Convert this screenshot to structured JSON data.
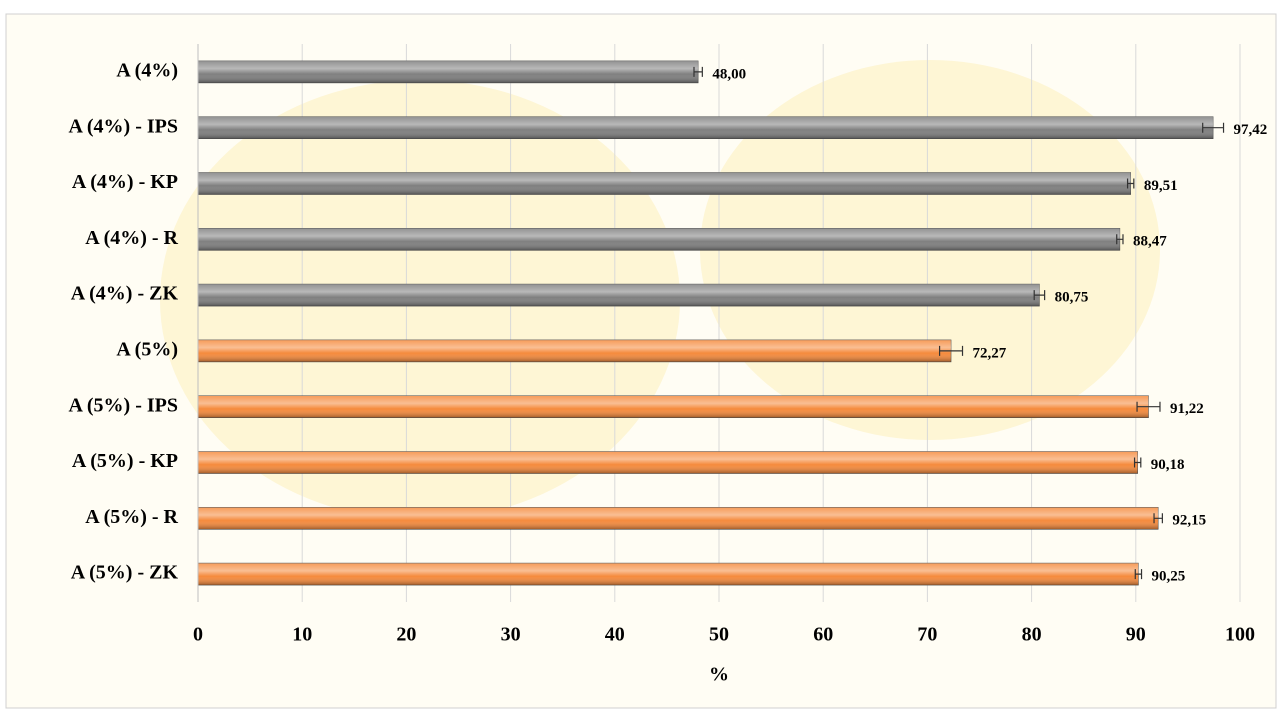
{
  "chart_data": {
    "type": "bar",
    "orientation": "horizontal",
    "xlabel": "%",
    "categories": [
      "A (4%)",
      "A (4%) - IPS",
      "A (4%) - KP",
      "A (4%) - R",
      "A (4%) - ZK",
      "A (5%)",
      "A (5%) - IPS",
      "A (5%) - KP",
      "A (5%) - R",
      "A (5%) - ZK"
    ],
    "values": [
      48.0,
      97.42,
      89.51,
      88.47,
      80.75,
      72.27,
      91.22,
      90.18,
      92.15,
      90.25
    ],
    "value_labels": [
      "48,00",
      "97,42",
      "89,51",
      "88,47",
      "80,75",
      "72,27",
      "91,22",
      "90,18",
      "92,15",
      "90,25"
    ],
    "errors": [
      0.4,
      1.0,
      0.3,
      0.3,
      0.5,
      1.1,
      1.1,
      0.3,
      0.4,
      0.3
    ],
    "colors": [
      "#7f7f7f",
      "#7f7f7f",
      "#7f7f7f",
      "#7f7f7f",
      "#7f7f7f",
      "#f58a3c",
      "#f58a3c",
      "#f58a3c",
      "#f58a3c",
      "#f58a3c"
    ],
    "xlim": [
      0,
      100
    ],
    "xticks": [
      0,
      10,
      20,
      30,
      40,
      50,
      60,
      70,
      80,
      90,
      100
    ],
    "grid": true
  }
}
